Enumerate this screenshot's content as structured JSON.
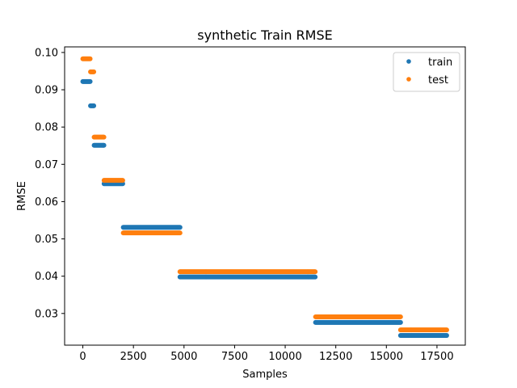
{
  "chart_data": {
    "type": "scatter",
    "title": "synthetic Train RMSE",
    "xlabel": "Samples",
    "ylabel": "RMSE",
    "xlim": [
      -900,
      18900
    ],
    "ylim": [
      0.0215,
      0.1015
    ],
    "xticks": [
      0,
      2500,
      5000,
      7500,
      10000,
      12500,
      15000,
      17500
    ],
    "xtick_labels": [
      "0",
      "2500",
      "5000",
      "7500",
      "10000",
      "12500",
      "15000",
      "17500"
    ],
    "yticks": [
      0.03,
      0.04,
      0.05,
      0.06,
      0.07,
      0.08,
      0.09,
      0.1
    ],
    "ytick_labels": [
      "0.03",
      "0.04",
      "0.05",
      "0.06",
      "0.07",
      "0.08",
      "0.09",
      "0.10"
    ],
    "grid": false,
    "legend_position": "top-right",
    "series": [
      {
        "name": "train",
        "color": "#1f77b4",
        "segments": [
          {
            "x_start": 0,
            "x_end": 380,
            "y": 0.0922
          },
          {
            "x_start": 380,
            "x_end": 560,
            "y": 0.0857
          },
          {
            "x_start": 560,
            "x_end": 1050,
            "y": 0.0751
          },
          {
            "x_start": 1050,
            "x_end": 2000,
            "y": 0.0648
          },
          {
            "x_start": 2000,
            "x_end": 4800,
            "y": 0.0531
          },
          {
            "x_start": 4800,
            "x_end": 11500,
            "y": 0.0398
          },
          {
            "x_start": 11500,
            "x_end": 15700,
            "y": 0.0276
          },
          {
            "x_start": 15700,
            "x_end": 18000,
            "y": 0.0241
          }
        ]
      },
      {
        "name": "test",
        "color": "#ff7f0e",
        "segments": [
          {
            "x_start": 0,
            "x_end": 380,
            "y": 0.0983
          },
          {
            "x_start": 380,
            "x_end": 560,
            "y": 0.0948
          },
          {
            "x_start": 560,
            "x_end": 1050,
            "y": 0.0773
          },
          {
            "x_start": 1050,
            "x_end": 2000,
            "y": 0.0657
          },
          {
            "x_start": 2000,
            "x_end": 4800,
            "y": 0.0516
          },
          {
            "x_start": 4800,
            "x_end": 11500,
            "y": 0.0412
          },
          {
            "x_start": 11500,
            "x_end": 15700,
            "y": 0.0291
          },
          {
            "x_start": 15700,
            "x_end": 18000,
            "y": 0.0256
          }
        ]
      }
    ]
  }
}
